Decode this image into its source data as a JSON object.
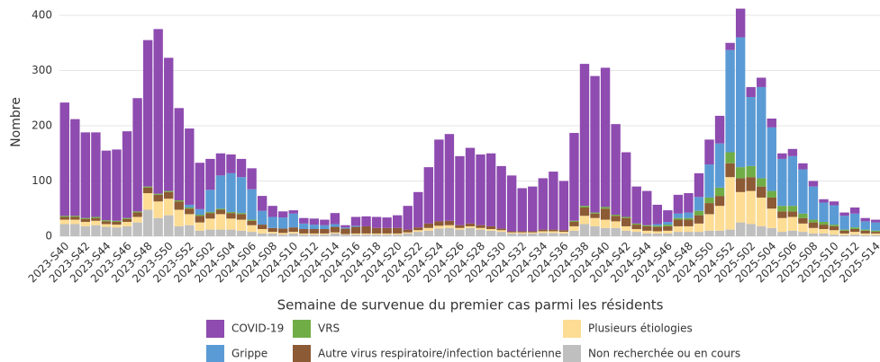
{
  "chart_data": {
    "type": "stacked_bar",
    "x_label": "Semaine de survenue du premier cas parmi les résidents",
    "y_label": "Nombre",
    "categories": [
      "2023-S40",
      null,
      "2023-S42",
      null,
      "2023-S44",
      null,
      "2023-S46",
      null,
      "2023-S48",
      null,
      "2023-S50",
      null,
      "2023-S52",
      null,
      "2024-S02",
      null,
      "2024-S04",
      null,
      "2024-S06",
      null,
      "2024-S08",
      null,
      "2024-S10",
      null,
      "2024-S12",
      null,
      "2024-S14",
      null,
      "2024-S16",
      null,
      "2024-S18",
      null,
      "2024-S20",
      null,
      "2024-S22",
      null,
      "2024-S24",
      null,
      "2024-S26",
      null,
      "2024-S28",
      null,
      "2024-S30",
      null,
      "2024-S32",
      null,
      "2024-S34",
      null,
      "2024-S36",
      null,
      "2024-S38",
      null,
      "2024-S40",
      null,
      "2024-S42",
      null,
      "2024-S44",
      null,
      "2024-S46",
      null,
      "2024-S48",
      null,
      "2024-S50",
      null,
      "2024-S52",
      null,
      "2025-S02",
      null,
      "2025-S04",
      null,
      "2025-S06",
      null,
      "2025-S08",
      null,
      "2025-S10",
      null,
      "2025-S12",
      null,
      "2025-S14"
    ],
    "series": [
      {
        "name": "Non recherchée ou en cours",
        "color": "#bfbfbf",
        "values": [
          22,
          22,
          18,
          20,
          17,
          16,
          18,
          25,
          48,
          33,
          38,
          18,
          20,
          10,
          12,
          12,
          12,
          10,
          8,
          5,
          5,
          3,
          5,
          3,
          3,
          3,
          5,
          3,
          3,
          3,
          3,
          3,
          3,
          5,
          8,
          10,
          14,
          15,
          12,
          15,
          12,
          10,
          8,
          5,
          5,
          5,
          6,
          6,
          5,
          10,
          22,
          18,
          15,
          15,
          10,
          8,
          5,
          5,
          5,
          8,
          8,
          8,
          10,
          10,
          12,
          25,
          22,
          18,
          15,
          8,
          10,
          8,
          5,
          5,
          3,
          2,
          3,
          2,
          2
        ]
      },
      {
        "name": "Plusieurs étiologies",
        "color": "#fddc94",
        "values": [
          8,
          8,
          8,
          8,
          5,
          5,
          8,
          10,
          30,
          30,
          30,
          30,
          20,
          15,
          20,
          28,
          20,
          20,
          12,
          8,
          3,
          3,
          3,
          2,
          2,
          2,
          2,
          1,
          2,
          2,
          2,
          2,
          2,
          2,
          3,
          5,
          5,
          5,
          3,
          3,
          3,
          3,
          3,
          2,
          2,
          2,
          3,
          3,
          3,
          8,
          15,
          15,
          15,
          12,
          8,
          5,
          5,
          4,
          5,
          10,
          10,
          15,
          30,
          45,
          95,
          55,
          60,
          52,
          35,
          25,
          25,
          15,
          10,
          8,
          8,
          3,
          5,
          3,
          3
        ]
      },
      {
        "name": "Autre virus respiratoire/infection bactérienne",
        "color": "#8c5a35",
        "values": [
          5,
          5,
          5,
          5,
          5,
          5,
          5,
          8,
          10,
          12,
          12,
          15,
          10,
          12,
          10,
          8,
          10,
          10,
          8,
          8,
          7,
          8,
          8,
          8,
          8,
          8,
          10,
          10,
          12,
          13,
          10,
          10,
          10,
          5,
          5,
          8,
          8,
          8,
          5,
          5,
          5,
          5,
          3,
          2,
          2,
          2,
          3,
          3,
          3,
          8,
          15,
          8,
          20,
          10,
          15,
          8,
          8,
          8,
          8,
          12,
          12,
          15,
          20,
          18,
          25,
          25,
          25,
          20,
          20,
          12,
          10,
          10,
          10,
          8,
          7,
          5,
          5,
          5,
          3
        ]
      },
      {
        "name": "VRS",
        "color": "#70ad47",
        "values": [
          2,
          2,
          2,
          2,
          2,
          2,
          2,
          2,
          2,
          2,
          2,
          2,
          2,
          2,
          2,
          2,
          2,
          2,
          2,
          0,
          0,
          0,
          0,
          0,
          0,
          0,
          0,
          0,
          0,
          0,
          0,
          0,
          0,
          0,
          0,
          0,
          0,
          0,
          0,
          0,
          0,
          0,
          0,
          0,
          0,
          0,
          0,
          0,
          0,
          2,
          3,
          2,
          3,
          2,
          2,
          2,
          2,
          2,
          3,
          3,
          3,
          8,
          10,
          15,
          20,
          20,
          20,
          15,
          12,
          10,
          10,
          8,
          5,
          5,
          3,
          2,
          3,
          2,
          2
        ]
      },
      {
        "name": "Grippe",
        "color": "#5b9bd5",
        "values": [
          0,
          0,
          0,
          0,
          0,
          0,
          0,
          0,
          0,
          0,
          0,
          0,
          5,
          10,
          40,
          60,
          70,
          65,
          55,
          25,
          20,
          20,
          25,
          10,
          8,
          7,
          5,
          2,
          2,
          0,
          0,
          0,
          0,
          0,
          0,
          0,
          0,
          0,
          0,
          0,
          0,
          0,
          0,
          0,
          0,
          0,
          0,
          0,
          0,
          0,
          0,
          0,
          0,
          0,
          0,
          0,
          0,
          3,
          5,
          8,
          10,
          25,
          60,
          80,
          185,
          235,
          125,
          165,
          115,
          85,
          90,
          80,
          60,
          35,
          35,
          25,
          25,
          15,
          15
        ]
      },
      {
        "name": "COVID-19",
        "color": "#8e4bb0",
        "values": [
          205,
          175,
          155,
          153,
          126,
          129,
          157,
          205,
          265,
          298,
          241,
          167,
          138,
          84,
          56,
          40,
          34,
          33,
          38,
          27,
          20,
          11,
          6,
          10,
          11,
          10,
          20,
          4,
          16,
          18,
          20,
          19,
          23,
          43,
          64,
          102,
          148,
          157,
          125,
          137,
          128,
          132,
          113,
          101,
          78,
          81,
          93,
          105,
          89,
          159,
          257,
          247,
          252,
          164,
          117,
          67,
          62,
          35,
          21,
          34,
          35,
          43,
          45,
          50,
          13,
          52,
          18,
          17,
          16,
          10,
          13,
          11,
          10,
          6,
          7,
          6,
          11,
          6,
          5
        ]
      }
    ],
    "ylim": [
      0,
      412
    ],
    "yticks": [
      0,
      100,
      200,
      300,
      400
    ],
    "grid": true
  }
}
